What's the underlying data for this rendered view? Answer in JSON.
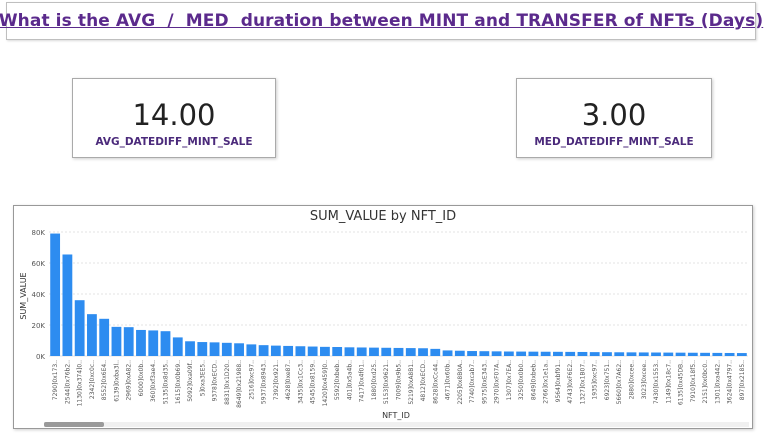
{
  "header": {
    "title": "What is the AVG  /  MED  duration between MINT and TRANSFER of NFTs (Days)"
  },
  "cards": {
    "avg": {
      "value": "14.00",
      "label": "AVG_DATEDIFF_MINT_SALE"
    },
    "med": {
      "value": "3.00",
      "label": "MED_DATEDIFF_MINT_SALE"
    }
  },
  "colors": {
    "bar": "#2d8cf0",
    "title": "#5b2a8c",
    "card_label": "#4b2a7b"
  },
  "chart_data": {
    "type": "bar",
    "title": "SUM_VALUE by NFT_ID",
    "xlabel": "NFT_ID",
    "ylabel": "SUM_VALUE",
    "ylim": [
      0,
      80000
    ],
    "yticks": [
      "0K",
      "20K",
      "40K",
      "60K",
      "80K"
    ],
    "grid": true,
    "categories": [
      "7290]0x173..",
      "2544]0x76b2..",
      "1130]0x374]0..",
      "2342]0xc0c..",
      "8552]0x6E4..",
      "6139]0xba3l..",
      "2969]0xA82..",
      "6000]0x0b..",
      "360]0xf3ae4..",
      "5135]0x8d35..",
      "1615]0x0b69..",
      "5092]0xa09f..",
      "5]0xa3EE5..",
      "9378]0xECD..",
      "8831]0x1D20..",
      "8649]0x21988..",
      "2516]0xc97..",
      "5937]0x8943..",
      "7392]0x921..",
      "4628]0xe87..",
      "3435]0x1Cc3..",
      "4545]0x8159..",
      "1420]0x459]0..",
      "5592]0xbeb..",
      "401]0x5a4b..",
      "7417]0x4f01..",
      "1880]0xd25..",
      "5153]0x9621..",
      "7009]0x9b5..",
      "5219]0xA8B1..",
      "4812]0xECD..",
      "8628]0xCc44..",
      "4671]0x60b..",
      "2205]0x8B0A..",
      "7740]0xcab7..",
      "9575]0xE343..",
      "2970]0xF07A..",
      "1307]0x7EA..",
      "3250]0x0b0..",
      "8649]0xbeb..",
      "2766]0x1e1a..",
      "9564]0xbf91..",
      "4743]0xF6E2..",
      "1327]0x1B07..",
      "1935]0xc97..",
      "6923]0x751..",
      "5660]0x7A62..",
      "2880]0xcee..",
      "3023]0xcee..",
      "7430]0x1553..",
      "1149]0x18c7..",
      "6135]0x45DB..",
      "7910]0x18f5..",
      "2151]0x0bc0..",
      "1301]0xa442..",
      "3624]0x4797..",
      "897]0x2185.."
    ],
    "values": [
      79000,
      65500,
      36000,
      27000,
      24000,
      18800,
      18600,
      16800,
      16500,
      16000,
      12000,
      9500,
      9000,
      8800,
      8500,
      8200,
      7500,
      7000,
      6700,
      6500,
      6300,
      6100,
      5900,
      5800,
      5600,
      5500,
      5400,
      5300,
      5200,
      5100,
      5000,
      4600,
      3600,
      3400,
      3200,
      3100,
      3000,
      2900,
      2850,
      2800,
      2750,
      2700,
      2650,
      2600,
      2500,
      2450,
      2400,
      2350,
      2300,
      2250,
      2200,
      2150,
      2100,
      2050,
      2000,
      1950,
      1900
    ]
  }
}
